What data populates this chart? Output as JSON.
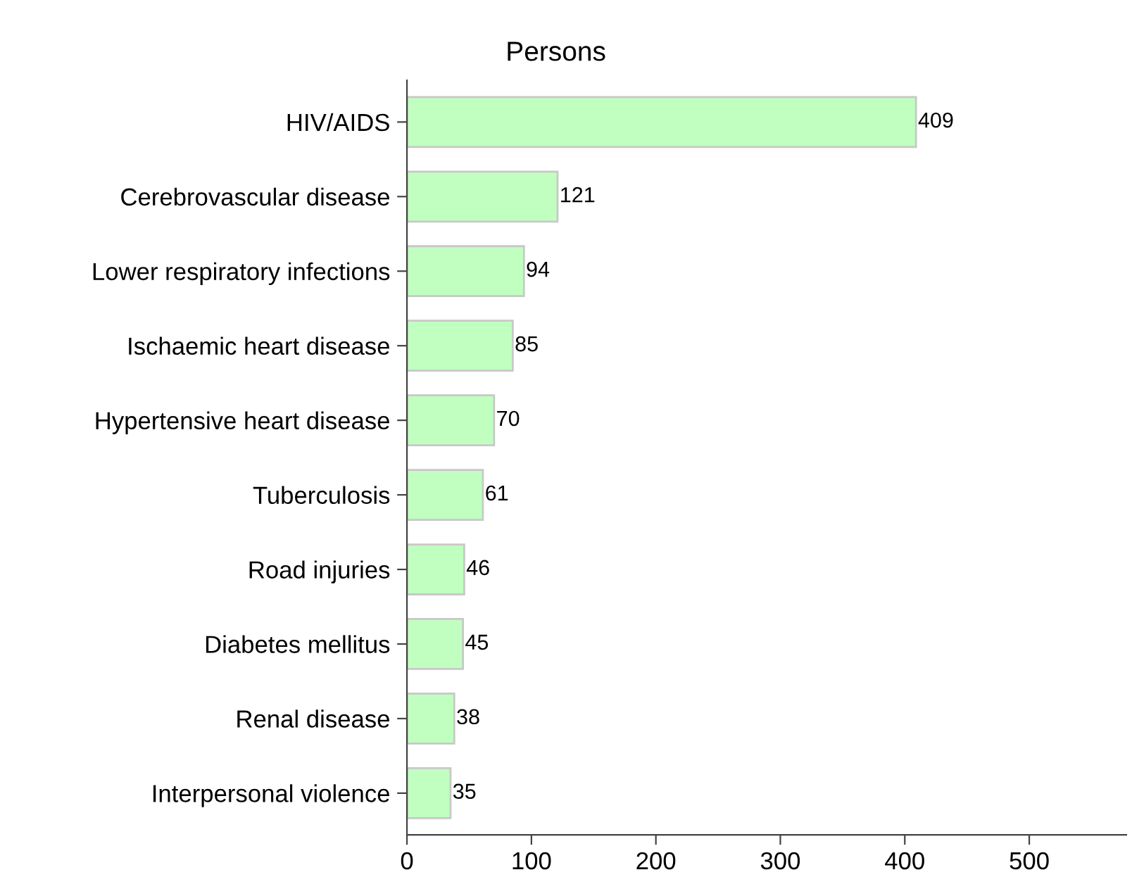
{
  "chart_data": {
    "type": "bar",
    "orientation": "horizontal",
    "title": "Persons",
    "categories": [
      "HIV/AIDS",
      "Cerebrovascular disease",
      "Lower respiratory infections",
      "Ischaemic heart disease",
      "Hypertensive heart disease",
      "Tuberculosis",
      "Road injuries",
      "Diabetes mellitus",
      "Renal disease",
      "Interpersonal violence"
    ],
    "values": [
      409,
      121,
      94,
      85,
      70,
      61,
      46,
      45,
      38,
      35
    ],
    "color": "#c0ffc0",
    "xlim": [
      0,
      578
    ],
    "xticks": [
      0,
      100,
      200,
      300,
      400,
      500
    ],
    "data_labels": true,
    "grid": false,
    "legend": false
  }
}
